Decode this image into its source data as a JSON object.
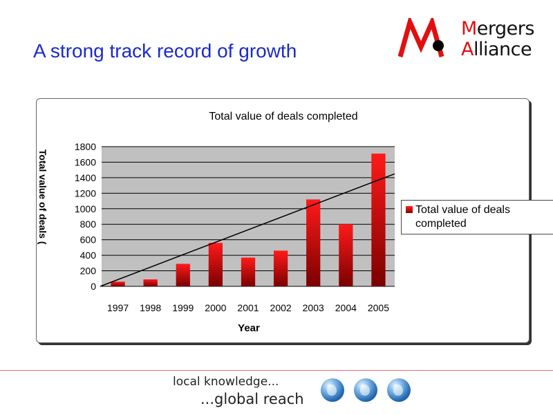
{
  "slide": {
    "title": "A strong track record of growth"
  },
  "logo": {
    "line1_first": "M",
    "line1_rest": "ergers",
    "line2_first": "A",
    "line2_rest": "lliance",
    "brand_color": "#e01010"
  },
  "chart_data": {
    "type": "bar",
    "title": "Total value of deals completed",
    "xlabel": "Year",
    "ylabel": "Total value of deals ($m)",
    "categories": [
      "1997",
      "1998",
      "1999",
      "2000",
      "2001",
      "2002",
      "2003",
      "2004",
      "2005"
    ],
    "series": [
      {
        "name": "Total value of deals completed",
        "values": [
          60,
          90,
          290,
          560,
          370,
          460,
          1120,
          800,
          1710
        ],
        "color": "#ff1a1a"
      }
    ],
    "trendline": {
      "type": "linear",
      "start": 0,
      "end": 1450
    },
    "ylim": [
      0,
      1800
    ],
    "yticks": [
      "0",
      "200",
      "400",
      "600",
      "800",
      "1000",
      "1200",
      "1400",
      "1600",
      "1800"
    ],
    "grid": true,
    "legend_position": "right",
    "plot_background": "#c0c0c0"
  },
  "footer": {
    "tagline_1": "local knowledge...",
    "tagline_2": "...global reach",
    "globes": [
      "globe-icon",
      "globe-icon",
      "globe-icon"
    ]
  }
}
